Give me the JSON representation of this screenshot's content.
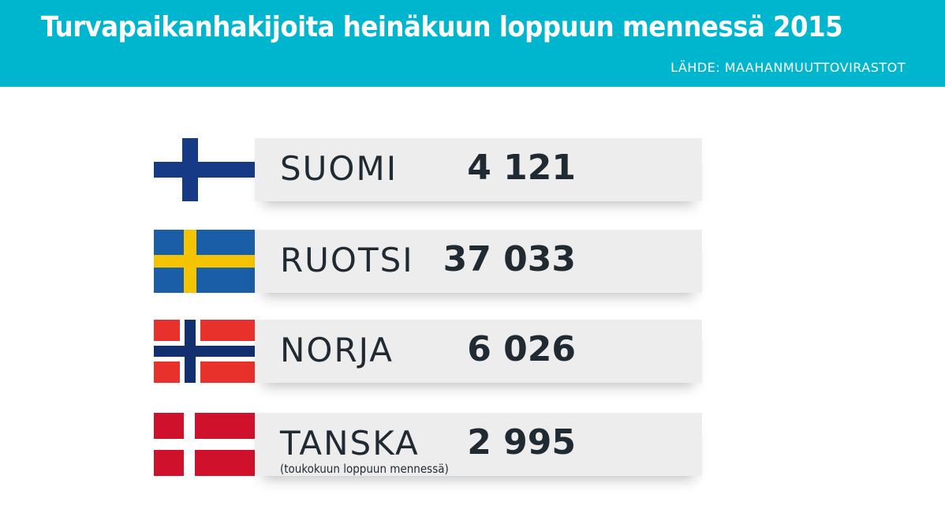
{
  "header": {
    "title": "Turvapaikanhakijoita heinäkuun loppuun mennessä 2015",
    "source": "LÄHDE: MAAHANMUUTTOVIRASTOT"
  },
  "colors": {
    "header_bg": "#00b6cf",
    "bar_bg": "#ededed",
    "text": "#1f2a33"
  },
  "chart_data": {
    "type": "table",
    "title": "Turvapaikanhakijoita heinäkuun loppuun mennessä 2015",
    "rows": [
      {
        "country": "SUOMI",
        "value_label": "4 121",
        "value": 4121,
        "flag": "finland-flag-icon",
        "note": ""
      },
      {
        "country": "RUOTSI",
        "value_label": "37 033",
        "value": 37033,
        "flag": "sweden-flag-icon",
        "note": ""
      },
      {
        "country": "NORJA",
        "value_label": "6 026",
        "value": 6026,
        "flag": "norway-flag-icon",
        "note": ""
      },
      {
        "country": "TANSKA",
        "value_label": "2 995",
        "value": 2995,
        "flag": "denmark-flag-icon",
        "note": "(toukokuun loppuun mennessä)"
      }
    ]
  }
}
